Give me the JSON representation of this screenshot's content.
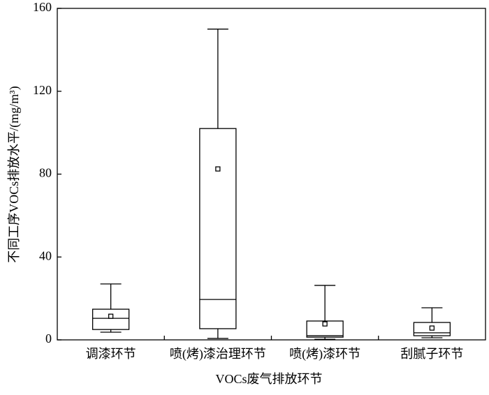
{
  "chart_data": {
    "type": "box",
    "xlabel": "VOCs废气排放环节",
    "ylabel": "不同工序VOCs排放水平/(mg/m³)",
    "categories": [
      "调漆环节",
      "喷(烤)漆治理环节",
      "喷(烤)漆环节",
      "刮腻子环节"
    ],
    "boxes": [
      {
        "min": 3.7,
        "q1": 5,
        "median": 10.4,
        "q3": 14.8,
        "max": 27,
        "mean": 11.4
      },
      {
        "min": 0.7,
        "q1": 5.4,
        "median": 19.5,
        "q3": 102,
        "max": 150,
        "mean": 82.5
      },
      {
        "min": 0.3,
        "q1": 1.3,
        "median": 2,
        "q3": 9.1,
        "max": 26.3,
        "mean": 7.7
      },
      {
        "min": 1,
        "q1": 2,
        "median": 3.4,
        "q3": 8.4,
        "max": 15.5,
        "mean": 5.7
      }
    ],
    "color": "#000000",
    "ylim": [
      0,
      160
    ],
    "yticks": [
      0,
      40,
      80,
      120,
      160
    ]
  }
}
